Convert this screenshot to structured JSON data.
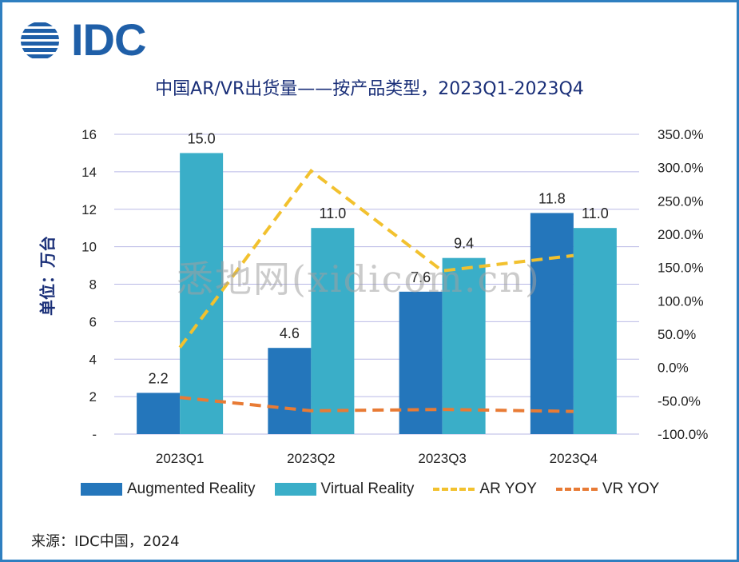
{
  "brand": {
    "name": "IDC",
    "color": "#1f5fa8"
  },
  "title": "中国AR/VR出货量——按产品类型，2023Q1-2023Q4",
  "source": "来源：IDC中国，2024",
  "watermark": "悉地网(xidicom.cn)",
  "colors": {
    "ar": "#2476bb",
    "vr": "#3aaec8",
    "ar_yoy": "#f2c12e",
    "vr_yoy": "#e87b35",
    "grid": "#b9b9e6",
    "border": "#2f7fc0"
  },
  "chart_data": {
    "type": "bar",
    "title": "中国AR/VR出货量——按产品类型，2023Q1-2023Q4",
    "ylabel": "单位：万台",
    "categories": [
      "2023Q1",
      "2023Q2",
      "2023Q3",
      "2023Q4"
    ],
    "ylim": [
      0,
      16
    ],
    "y_ticks": [
      "-",
      "2",
      "4",
      "6",
      "8",
      "10",
      "12",
      "14",
      "16"
    ],
    "y2lim": [
      -100,
      350
    ],
    "y2_ticks": [
      "-100.0%",
      "-50.0%",
      "0.0%",
      "50.0%",
      "100.0%",
      "150.0%",
      "200.0%",
      "250.0%",
      "300.0%",
      "350.0%"
    ],
    "grid": true,
    "legend_position": "bottom",
    "series": [
      {
        "name": "Augmented Reality",
        "type": "bar",
        "axis": "left",
        "values": [
          2.2,
          4.6,
          7.6,
          11.8
        ],
        "labels": [
          "2.2",
          "4.6",
          "7.6",
          "11.8"
        ]
      },
      {
        "name": "Virtual Reality",
        "type": "bar",
        "axis": "left",
        "values": [
          15.0,
          11.0,
          9.4,
          11.0
        ],
        "labels": [
          "15.0",
          "11.0",
          "9.4",
          "11.0"
        ]
      },
      {
        "name": "AR YOY",
        "type": "line",
        "style": "dashed",
        "axis": "right",
        "values": [
          30,
          295,
          145,
          168
        ]
      },
      {
        "name": "VR YOY",
        "type": "line",
        "style": "dashed",
        "axis": "right",
        "values": [
          -45,
          -65,
          -63,
          -66
        ]
      }
    ]
  }
}
